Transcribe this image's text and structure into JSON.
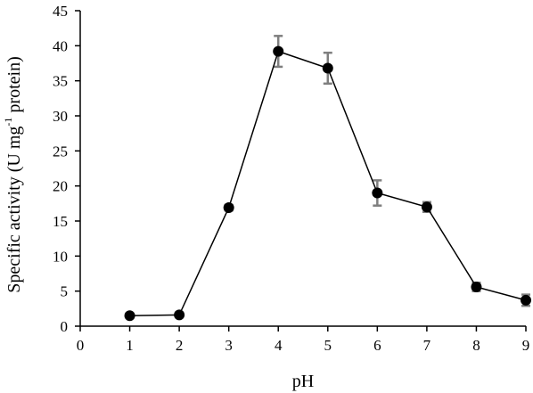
{
  "chart_data": {
    "type": "line",
    "xlabel": "pH",
    "ylabel": {
      "prefix": "Specific activity (U mg",
      "superscript": "-1",
      "suffix": " protein)"
    },
    "xlim": [
      0,
      9
    ],
    "ylim": [
      0,
      45
    ],
    "xticks": [
      0,
      1,
      2,
      3,
      4,
      5,
      6,
      7,
      8,
      9
    ],
    "yticks": [
      0,
      5,
      10,
      15,
      20,
      25,
      30,
      35,
      40,
      45
    ],
    "grid": false,
    "legend": "none",
    "series": [
      {
        "color": "#000000",
        "marker": "circle",
        "x": [
          1,
          2,
          3,
          4,
          5,
          6,
          7,
          8,
          9
        ],
        "y": [
          1.5,
          1.6,
          16.9,
          39.2,
          36.8,
          19.0,
          17.0,
          5.6,
          3.7
        ],
        "error": [
          0.3,
          0.3,
          0.4,
          2.2,
          2.2,
          1.8,
          0.7,
          0.6,
          0.8
        ]
      }
    ],
    "error_bar_color": "#7f7f7f"
  }
}
